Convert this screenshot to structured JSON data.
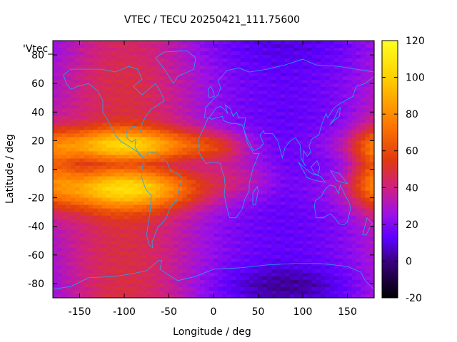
{
  "chart_data": {
    "type": "heatmap",
    "title": "VTEC / TECU 20250421_111.75600",
    "xlabel": "Longitude / deg",
    "ylabel": "Latitude / deg",
    "key_label": "'Vtec_",
    "xlim": [
      -180,
      180
    ],
    "ylim": [
      -90,
      90
    ],
    "x_ticks": [
      -150,
      -100,
      -50,
      0,
      50,
      100,
      150
    ],
    "y_ticks": [
      -80,
      -60,
      -40,
      -20,
      0,
      20,
      40,
      60,
      80
    ],
    "colorbar": {
      "range": [
        -20,
        120
      ],
      "ticks": [
        -20,
        0,
        20,
        40,
        60,
        80,
        100,
        120
      ]
    },
    "grid": false,
    "colormap_stops": [
      {
        "value": -20,
        "color": "#000000"
      },
      {
        "value": 0,
        "color": "#3a0080"
      },
      {
        "value": 12,
        "color": "#5a00ff"
      },
      {
        "value": 25,
        "color": "#9a10e8"
      },
      {
        "value": 40,
        "color": "#d02080"
      },
      {
        "value": 55,
        "color": "#e03a10"
      },
      {
        "value": 75,
        "color": "#ff7a00"
      },
      {
        "value": 100,
        "color": "#ffd000"
      },
      {
        "value": 120,
        "color": "#ffff20"
      }
    ],
    "coastline_color": "#1ea8f0"
  }
}
